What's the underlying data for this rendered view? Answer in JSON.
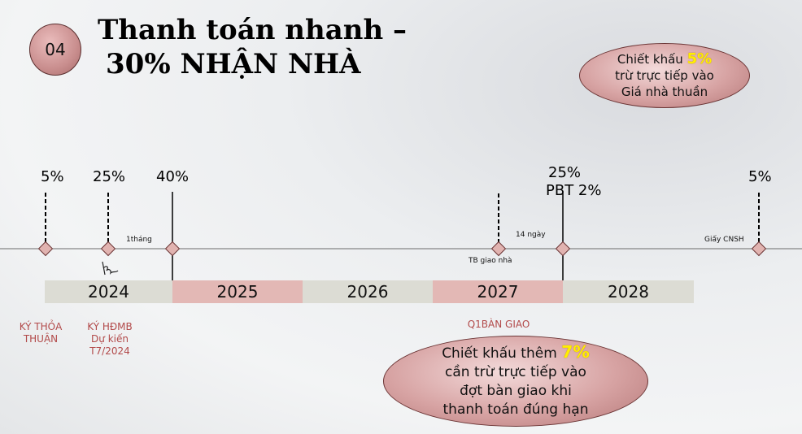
{
  "badge": "04",
  "title": {
    "line1": "Thanh toán nhanh –",
    "line2": "30% NHẬN NHÀ"
  },
  "discount_top": {
    "line1_prefix": "Chiết khấu ",
    "line1_value": "5%",
    "line2": "trừ trực tiếp vào",
    "line3": "Giá nhà thuần"
  },
  "discount_bottom": {
    "line1_prefix": "Chiết khấu thêm ",
    "line1_value": "7%",
    "line2": "cần trừ trực tiếp vào",
    "line3": "đợt bàn giao khi",
    "line4": "thanh toán đúng hạn"
  },
  "milestones": {
    "m1": "5%",
    "m2": "25%",
    "m3": "40%",
    "m4a": "25%",
    "m4b": "PBT 2%",
    "m5": "5%"
  },
  "small_labels": {
    "one_month": "1tháng",
    "fourteen_days": "14 ngày",
    "handover_notice": "TB giao nhà",
    "certificate": "Giấy CNSH"
  },
  "years": [
    "2024",
    "2025",
    "2026",
    "2027",
    "2028"
  ],
  "bottom_labels": {
    "agreement_l1": "KÝ THỎA",
    "agreement_l2": "THUẬN",
    "contract_l1": "KÝ HĐMB",
    "contract_l2": "Dự kiến",
    "contract_l3": "T7/2024",
    "handover": "Q1BÀN GIAO"
  },
  "colors": {
    "year_grey": "#dcdcd4",
    "year_pink": "#e3b8b5",
    "accent_red": "#b24a4a",
    "highlight": "#ffee00"
  }
}
